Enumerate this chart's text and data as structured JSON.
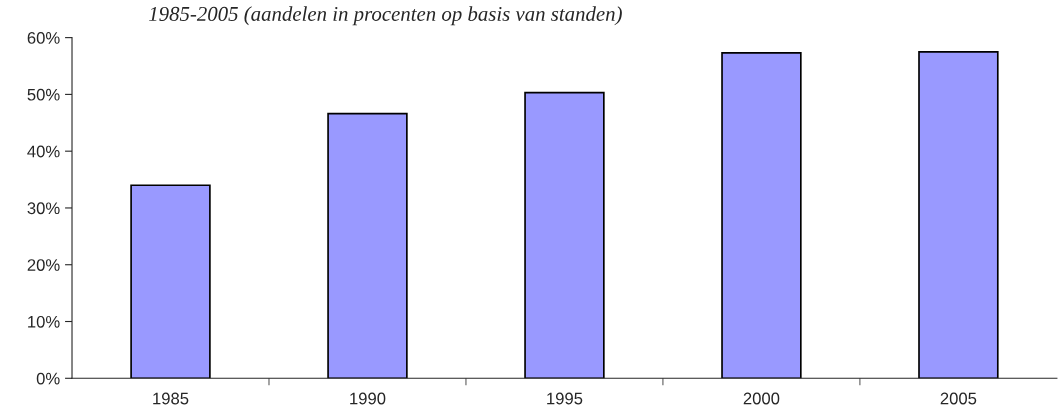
{
  "chart_data": {
    "type": "bar",
    "title": "1985-2005 (aandelen in procenten op basis van standen)",
    "categories": [
      "1985",
      "1990",
      "1995",
      "2000",
      "2005"
    ],
    "values": [
      34,
      46.6,
      50.3,
      57.3,
      57.5
    ],
    "color": "#9999ff",
    "ylim": [
      0,
      60
    ],
    "yticks": [
      {
        "value": 0,
        "label": "0%"
      },
      {
        "value": 10,
        "label": "10%"
      },
      {
        "value": 20,
        "label": "20%"
      },
      {
        "value": 30,
        "label": "30%"
      },
      {
        "value": 40,
        "label": "40%"
      },
      {
        "value": 50,
        "label": "50%"
      },
      {
        "value": 60,
        "label": "60%"
      }
    ],
    "grid": false,
    "legend": false
  }
}
